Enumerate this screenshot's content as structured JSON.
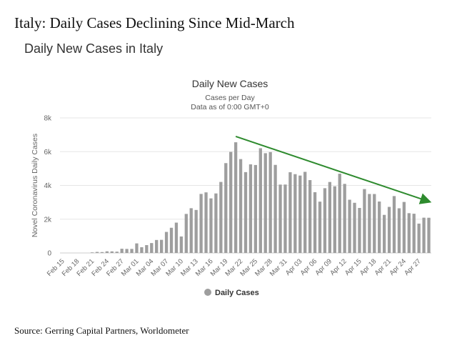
{
  "headline": "Italy: Daily Cases Declining Since Mid-March",
  "subheadline": "Daily New Cases in Italy",
  "source": "Source: Gerring Capital Partners, Worldometer",
  "colors": {
    "bar": "#9e9e9e",
    "trend": "#2e8b2e",
    "grid": "#e6e6e6",
    "axis_text": "#666666"
  },
  "chart_data": {
    "type": "bar",
    "title": "Daily New Cases",
    "subtitle_lines": [
      "Cases per Day",
      "Data as of 0:00 GMT+0"
    ],
    "ylabel": "Novel Coronavirus Daily Cases",
    "ylim": [
      0,
      8000
    ],
    "yticks": [
      0,
      2000,
      4000,
      6000,
      8000
    ],
    "ytick_labels": [
      "0",
      "2k",
      "4k",
      "6k",
      "8k"
    ],
    "xtick_labels": [
      "Feb 15",
      "Feb 18",
      "Feb 21",
      "Feb 24",
      "Feb 27",
      "Mar 01",
      "Mar 04",
      "Mar 07",
      "Mar 10",
      "Mar 13",
      "Mar 16",
      "Mar 19",
      "Mar 22",
      "Mar 25",
      "Mar 28",
      "Mar 31",
      "Apr 03",
      "Apr 06",
      "Apr 09",
      "Apr 12",
      "Apr 15",
      "Apr 18",
      "Apr 21",
      "Apr 24",
      "Apr 27"
    ],
    "xtick_step": 3,
    "grid": true,
    "legend": {
      "position": "bottom",
      "label": "Daily Cases"
    },
    "categories": [
      "Feb 15",
      "Feb 16",
      "Feb 17",
      "Feb 18",
      "Feb 19",
      "Feb 20",
      "Feb 21",
      "Feb 22",
      "Feb 23",
      "Feb 24",
      "Feb 25",
      "Feb 26",
      "Feb 27",
      "Feb 28",
      "Feb 29",
      "Mar 01",
      "Mar 02",
      "Mar 03",
      "Mar 04",
      "Mar 05",
      "Mar 06",
      "Mar 07",
      "Mar 08",
      "Mar 09",
      "Mar 10",
      "Mar 11",
      "Mar 12",
      "Mar 13",
      "Mar 14",
      "Mar 15",
      "Mar 16",
      "Mar 17",
      "Mar 18",
      "Mar 19",
      "Mar 20",
      "Mar 21",
      "Mar 22",
      "Mar 23",
      "Mar 24",
      "Mar 25",
      "Mar 26",
      "Mar 27",
      "Mar 28",
      "Mar 29",
      "Mar 30",
      "Mar 31",
      "Apr 01",
      "Apr 02",
      "Apr 03",
      "Apr 04",
      "Apr 05",
      "Apr 06",
      "Apr 07",
      "Apr 08",
      "Apr 09",
      "Apr 10",
      "Apr 11",
      "Apr 12",
      "Apr 13",
      "Apr 14",
      "Apr 15",
      "Apr 16",
      "Apr 17",
      "Apr 18",
      "Apr 19",
      "Apr 20",
      "Apr 21",
      "Apr 22",
      "Apr 23",
      "Apr 24",
      "Apr 25",
      "Apr 26",
      "Apr 27",
      "Apr 28",
      "Apr 29"
    ],
    "series": [
      {
        "values": [
          0,
          0,
          0,
          0,
          0,
          0,
          14,
          62,
          53,
          97,
          93,
          78,
          250,
          238,
          240,
          566,
          342,
          466,
          587,
          769,
          778,
          1247,
          1492,
          1797,
          977,
          2313,
          2651,
          2547,
          3497,
          3590,
          3233,
          3526,
          4207,
          5322,
          5986,
          6557,
          5560,
          4789,
          5249,
          5210,
          6203,
          5909,
          5974,
          5217,
          4050,
          4053,
          4782,
          4668,
          4585,
          4805,
          4316,
          3599,
          3039,
          3836,
          4204,
          3951,
          4694,
          4092,
          3153,
          2972,
          2667,
          3786,
          3493,
          3491,
          3047,
          2256,
          2729,
          3370,
          2646,
          3021,
          2357,
          2324,
          1739,
          2091,
          2086
        ]
      }
    ],
    "trend_line": {
      "from": [
        "Mar 21",
        6900
      ],
      "to": [
        "Apr 29",
        3050
      ]
    }
  }
}
